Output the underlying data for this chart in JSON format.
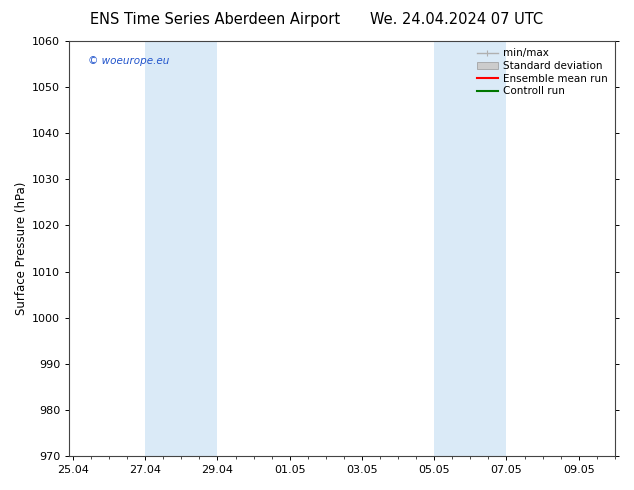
{
  "title_left": "ENS Time Series Aberdeen Airport",
  "title_right": "We. 24.04.2024 07 UTC",
  "ylabel": "Surface Pressure (hPa)",
  "ylim": [
    970,
    1060
  ],
  "yticks": [
    970,
    980,
    990,
    1000,
    1010,
    1020,
    1030,
    1040,
    1050,
    1060
  ],
  "xtick_labels": [
    "25.04",
    "27.04",
    "29.04",
    "01.05",
    "03.05",
    "05.05",
    "07.05",
    "09.05"
  ],
  "xtick_positions": [
    0,
    2,
    4,
    6,
    8,
    10,
    12,
    14
  ],
  "xlim_start": -0.1,
  "xlim_end": 15.0,
  "weekend_bands": [
    {
      "xmin": 2.0,
      "xmax": 4.0
    },
    {
      "xmin": 10.0,
      "xmax": 12.0
    }
  ],
  "weekend_color": "#daeaf7",
  "watermark_text": "© woeurope.eu",
  "watermark_color": "#2255cc",
  "legend_items": [
    {
      "label": "min/max",
      "color": "#b0b0b0",
      "lw": 1.0,
      "style": "line_with_caps"
    },
    {
      "label": "Standard deviation",
      "color": "#cccccc",
      "lw": 5,
      "style": "thick_line"
    },
    {
      "label": "Ensemble mean run",
      "color": "#ff0000",
      "lw": 1.5,
      "style": "line"
    },
    {
      "label": "Controll run",
      "color": "#007700",
      "lw": 1.5,
      "style": "line"
    }
  ],
  "bg_color": "#ffffff",
  "title_fontsize": 10.5,
  "tick_fontsize": 8,
  "ylabel_fontsize": 8.5,
  "legend_fontsize": 7.5
}
